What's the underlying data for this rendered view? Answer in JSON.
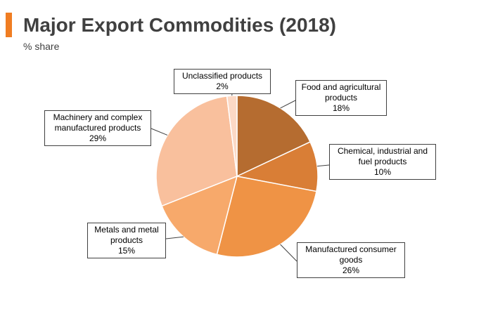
{
  "header": {
    "title": "Major Export Commodities (2018)",
    "subtitle": "% share",
    "accent_color": "#f07d22"
  },
  "chart_data": {
    "type": "pie",
    "title": "Major Export Commodities (2018)",
    "subtitle": "% share",
    "slices": [
      {
        "label": "Food and agricultural products",
        "value": 18,
        "value_label": "18%",
        "color": "#b56c30"
      },
      {
        "label": "Chemical, industrial and fuel products",
        "value": 10,
        "value_label": "10%",
        "color": "#d97e36"
      },
      {
        "label": "Manufactured consumer goods",
        "value": 26,
        "value_label": "26%",
        "color": "#ef9345"
      },
      {
        "label": "Metals and metal products",
        "value": 15,
        "value_label": "15%",
        "color": "#f7a96b"
      },
      {
        "label": "Machinery and complex manufactured products",
        "value": 29,
        "value_label": "29%",
        "color": "#f9c09d"
      },
      {
        "label": "Unclassified products",
        "value": 2,
        "value_label": "2%",
        "color": "#fcd9c5"
      }
    ]
  }
}
